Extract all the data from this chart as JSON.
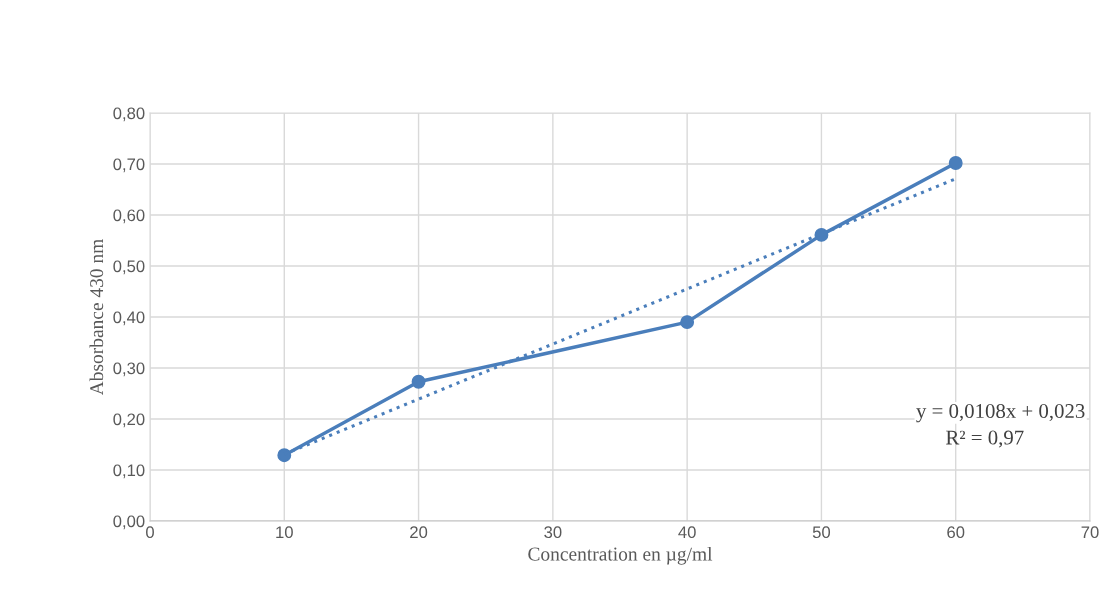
{
  "chart_data": {
    "type": "line",
    "xlabel": "Concentration en µg/ml",
    "ylabel": "Absorbance 430 nm",
    "series": [
      {
        "color": "#4a7ebb",
        "x": [
          10,
          20,
          40,
          50,
          60
        ],
        "values": [
          0.129,
          0.273,
          0.39,
          0.561,
          0.702
        ],
        "marker": "circle",
        "line_style": "solid"
      },
      {
        "type": "line",
        "color": "#4a7ebb",
        "x": [
          10,
          60
        ],
        "values": [
          0.131,
          0.671
        ],
        "marker": "none",
        "line_style": "dotted"
      }
    ],
    "xlim": [
      0,
      70
    ],
    "xticks": [
      0,
      10,
      20,
      30,
      40,
      50,
      60,
      70
    ],
    "ylim": [
      0,
      0.8
    ],
    "yticks": [
      {
        "value": 0,
        "label": "0,00"
      },
      {
        "value": 0.1,
        "label": "0,10"
      },
      {
        "value": 0.2,
        "label": "0,20"
      },
      {
        "value": 0.3,
        "label": "0,30"
      },
      {
        "value": 0.4,
        "label": "0,40"
      },
      {
        "value": 0.5,
        "label": "0,50"
      },
      {
        "value": 0.6,
        "label": "0,60"
      },
      {
        "value": 0.7,
        "label": "0,70"
      },
      {
        "value": 0.8,
        "label": "0,80"
      }
    ],
    "grid": true,
    "annotations": [
      "y = 0,0108x + 0,023",
      "R² = 0,97"
    ]
  }
}
